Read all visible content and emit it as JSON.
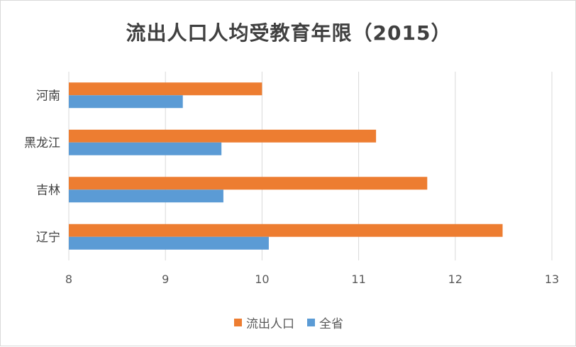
{
  "chart_data": {
    "type": "bar",
    "orientation": "horizontal",
    "title": "流出人口人均受教育年限（2015）",
    "categories": [
      "河南",
      "黑龙江",
      "吉林",
      "辽宁"
    ],
    "series": [
      {
        "name": "流出人口",
        "color": "#ED7D31",
        "values": [
          10.0,
          11.18,
          11.71,
          12.49
        ]
      },
      {
        "name": "全省",
        "color": "#5B9BD5",
        "values": [
          9.18,
          9.58,
          9.6,
          10.07
        ]
      }
    ],
    "xlim": [
      8,
      13
    ],
    "xticks": [
      "8",
      "9",
      "10",
      "11",
      "12",
      "13"
    ],
    "grid": true,
    "legend_position": "bottom"
  }
}
